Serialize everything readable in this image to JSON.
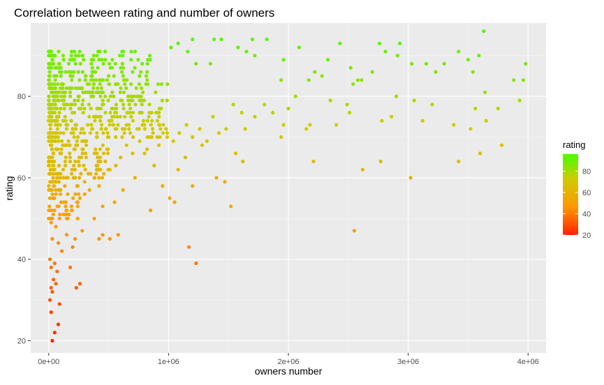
{
  "chart_data": {
    "type": "scatter",
    "title": "Correlation between rating and number of owners",
    "xlabel": "owners number",
    "ylabel": "rating",
    "xlim": [
      -150000,
      4150000
    ],
    "ylim": [
      17,
      98
    ],
    "x_ticks": [
      {
        "value": 0,
        "label": "0e+00"
      },
      {
        "value": 1000000,
        "label": "1e+06"
      },
      {
        "value": 2000000,
        "label": "2e+06"
      },
      {
        "value": 3000000,
        "label": "3e+06"
      },
      {
        "value": 4000000,
        "label": "4e+06"
      }
    ],
    "y_ticks": [
      {
        "value": 20,
        "label": "20"
      },
      {
        "value": 40,
        "label": "40"
      },
      {
        "value": 60,
        "label": "60"
      },
      {
        "value": 80,
        "label": "80"
      }
    ],
    "grid": true,
    "legend": {
      "title": "rating",
      "position": "right",
      "range": [
        20,
        96
      ],
      "ticks": [
        {
          "value": 20,
          "label": "20"
        },
        {
          "value": 40,
          "label": "40"
        },
        {
          "value": 60,
          "label": "60"
        },
        {
          "value": 80,
          "label": "80"
        }
      ],
      "gradient": {
        "low": "#ff2200",
        "mid": "#ff9900",
        "mid2": "#cccc00",
        "high": "#44ff00"
      }
    },
    "points": [
      {
        "x": 30000,
        "y": 20
      },
      {
        "x": 50000,
        "y": 22
      },
      {
        "x": 80000,
        "y": 24
      },
      {
        "x": 20000,
        "y": 27
      },
      {
        "x": 90000,
        "y": 29
      },
      {
        "x": 10000,
        "y": 30
      },
      {
        "x": 30000,
        "y": 32
      },
      {
        "x": 20000,
        "y": 33
      },
      {
        "x": 60000,
        "y": 34
      },
      {
        "x": 40000,
        "y": 35
      },
      {
        "x": 70000,
        "y": 37
      },
      {
        "x": 20000,
        "y": 38
      },
      {
        "x": 50000,
        "y": 39
      },
      {
        "x": 10000,
        "y": 40
      },
      {
        "x": 110000,
        "y": 42
      },
      {
        "x": 80000,
        "y": 44
      },
      {
        "x": 30000,
        "y": 45
      },
      {
        "x": 150000,
        "y": 46
      },
      {
        "x": 60000,
        "y": 48
      },
      {
        "x": 20000,
        "y": 49
      },
      {
        "x": 230000,
        "y": 33
      },
      {
        "x": 260000,
        "y": 34
      },
      {
        "x": 180000,
        "y": 38
      },
      {
        "x": 200000,
        "y": 43
      },
      {
        "x": 220000,
        "y": 45
      },
      {
        "x": 280000,
        "y": 47
      },
      {
        "x": 150000,
        "y": 50
      },
      {
        "x": 190000,
        "y": 52
      },
      {
        "x": 240000,
        "y": 54
      },
      {
        "x": 300000,
        "y": 56
      },
      {
        "x": 420000,
        "y": 45
      },
      {
        "x": 450000,
        "y": 46
      },
      {
        "x": 510000,
        "y": 45
      },
      {
        "x": 580000,
        "y": 46
      },
      {
        "x": 380000,
        "y": 50
      },
      {
        "x": 450000,
        "y": 53
      },
      {
        "x": 550000,
        "y": 54
      },
      {
        "x": 620000,
        "y": 57
      },
      {
        "x": 850000,
        "y": 52
      },
      {
        "x": 1010000,
        "y": 55
      },
      {
        "x": 1050000,
        "y": 54
      },
      {
        "x": 1170000,
        "y": 43
      },
      {
        "x": 1230000,
        "y": 39
      },
      {
        "x": 1520000,
        "y": 53
      },
      {
        "x": 2550000,
        "y": 47
      },
      {
        "x": 950000,
        "y": 58
      },
      {
        "x": 1200000,
        "y": 58
      },
      {
        "x": 1470000,
        "y": 59
      },
      {
        "x": 1400000,
        "y": 60
      },
      {
        "x": 3020000,
        "y": 60
      },
      {
        "x": 1620000,
        "y": 64
      },
      {
        "x": 1560000,
        "y": 66
      },
      {
        "x": 2620000,
        "y": 62
      },
      {
        "x": 2210000,
        "y": 64
      },
      {
        "x": 2770000,
        "y": 64
      },
      {
        "x": 3420000,
        "y": 64
      },
      {
        "x": 3600000,
        "y": 66
      },
      {
        "x": 3780000,
        "y": 68
      },
      {
        "x": 1280000,
        "y": 68
      },
      {
        "x": 1140000,
        "y": 65
      },
      {
        "x": 1080000,
        "y": 62
      },
      {
        "x": 720000,
        "y": 60
      },
      {
        "x": 880000,
        "y": 63
      },
      {
        "x": 800000,
        "y": 66
      },
      {
        "x": 1940000,
        "y": 70
      },
      {
        "x": 1960000,
        "y": 73
      },
      {
        "x": 2150000,
        "y": 72
      },
      {
        "x": 2180000,
        "y": 73
      },
      {
        "x": 2400000,
        "y": 73
      },
      {
        "x": 2780000,
        "y": 74
      },
      {
        "x": 2860000,
        "y": 75
      },
      {
        "x": 3120000,
        "y": 74
      },
      {
        "x": 3380000,
        "y": 73
      },
      {
        "x": 3520000,
        "y": 72
      },
      {
        "x": 3650000,
        "y": 74
      },
      {
        "x": 3750000,
        "y": 77
      },
      {
        "x": 3560000,
        "y": 77
      },
      {
        "x": 3200000,
        "y": 78
      },
      {
        "x": 3050000,
        "y": 79
      },
      {
        "x": 2900000,
        "y": 80
      },
      {
        "x": 3930000,
        "y": 79
      },
      {
        "x": 3640000,
        "y": 81
      },
      {
        "x": 3540000,
        "y": 86
      },
      {
        "x": 3880000,
        "y": 84
      },
      {
        "x": 3960000,
        "y": 84
      },
      {
        "x": 3980000,
        "y": 88
      },
      {
        "x": 3630000,
        "y": 96
      },
      {
        "x": 3590000,
        "y": 90
      },
      {
        "x": 3500000,
        "y": 89
      },
      {
        "x": 3420000,
        "y": 91
      },
      {
        "x": 3300000,
        "y": 88
      },
      {
        "x": 3230000,
        "y": 86
      },
      {
        "x": 3150000,
        "y": 88
      },
      {
        "x": 3030000,
        "y": 88
      },
      {
        "x": 2910000,
        "y": 90
      },
      {
        "x": 2810000,
        "y": 91
      },
      {
        "x": 2760000,
        "y": 93
      },
      {
        "x": 2930000,
        "y": 93
      },
      {
        "x": 2700000,
        "y": 86
      },
      {
        "x": 2580000,
        "y": 84
      },
      {
        "x": 2610000,
        "y": 84
      },
      {
        "x": 2540000,
        "y": 83
      },
      {
        "x": 2520000,
        "y": 87
      },
      {
        "x": 2430000,
        "y": 93
      },
      {
        "x": 2330000,
        "y": 89
      },
      {
        "x": 2280000,
        "y": 85
      },
      {
        "x": 2220000,
        "y": 86
      },
      {
        "x": 2170000,
        "y": 84
      },
      {
        "x": 2090000,
        "y": 92
      },
      {
        "x": 1960000,
        "y": 89
      },
      {
        "x": 1940000,
        "y": 84
      },
      {
        "x": 1820000,
        "y": 94
      },
      {
        "x": 1700000,
        "y": 94
      },
      {
        "x": 1720000,
        "y": 90
      },
      {
        "x": 1650000,
        "y": 91
      },
      {
        "x": 1580000,
        "y": 92
      },
      {
        "x": 1440000,
        "y": 94
      },
      {
        "x": 1380000,
        "y": 94
      },
      {
        "x": 1350000,
        "y": 88
      },
      {
        "x": 1230000,
        "y": 88
      },
      {
        "x": 1200000,
        "y": 94
      },
      {
        "x": 1160000,
        "y": 91
      },
      {
        "x": 1080000,
        "y": 93
      },
      {
        "x": 1020000,
        "y": 92
      },
      {
        "x": 2490000,
        "y": 78
      },
      {
        "x": 2510000,
        "y": 76
      },
      {
        "x": 2350000,
        "y": 79
      },
      {
        "x": 2060000,
        "y": 80
      },
      {
        "x": 2000000,
        "y": 77
      },
      {
        "x": 1870000,
        "y": 76
      },
      {
        "x": 1800000,
        "y": 78
      },
      {
        "x": 1720000,
        "y": 75
      },
      {
        "x": 1640000,
        "y": 72
      },
      {
        "x": 1610000,
        "y": 76
      },
      {
        "x": 1540000,
        "y": 78
      },
      {
        "x": 1480000,
        "y": 72
      },
      {
        "x": 1420000,
        "y": 71
      },
      {
        "x": 1370000,
        "y": 75
      },
      {
        "x": 1320000,
        "y": 69
      },
      {
        "x": 1260000,
        "y": 72
      },
      {
        "x": 1200000,
        "y": 70
      },
      {
        "x": 1150000,
        "y": 73
      },
      {
        "x": 1090000,
        "y": 71
      },
      {
        "x": 1040000,
        "y": 69
      },
      {
        "x": 980000,
        "y": 72
      },
      {
        "x": 920000,
        "y": 68
      },
      {
        "x": 860000,
        "y": 70
      },
      {
        "x": 820000,
        "y": 67
      },
      {
        "x": 760000,
        "y": 69
      },
      {
        "x": 700000,
        "y": 66
      },
      {
        "x": 650000,
        "y": 68
      },
      {
        "x": 600000,
        "y": 65
      },
      {
        "x": 560000,
        "y": 63
      },
      {
        "x": 510000,
        "y": 62
      },
      {
        "x": 460000,
        "y": 61
      },
      {
        "x": 420000,
        "y": 58
      },
      {
        "x": 380000,
        "y": 60
      },
      {
        "x": 340000,
        "y": 57
      },
      {
        "x": 300000,
        "y": 59
      },
      {
        "x": 260000,
        "y": 55
      }
    ],
    "dense_cluster": {
      "description_free": true,
      "x_range": [
        0,
        1000000
      ],
      "y_range": [
        50,
        92
      ]
    }
  }
}
